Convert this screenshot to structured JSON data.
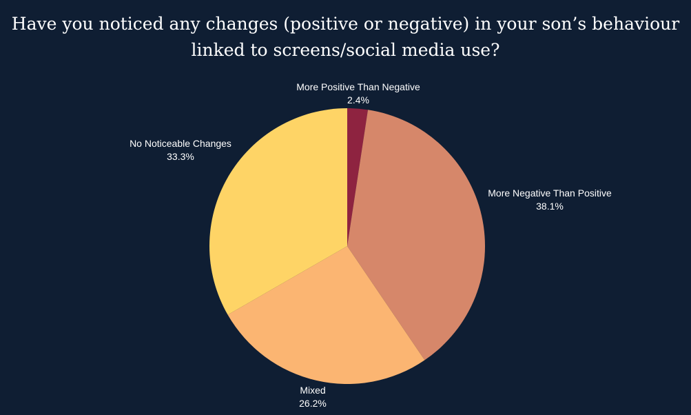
{
  "chart_data": {
    "type": "pie",
    "title": "Have you noticed any changes (positive or negative) in your son’s behaviour linked to screens/social media use?",
    "slices": [
      {
        "label": "More Positive Than Negative",
        "value": 2.4,
        "value_label": "2.4%",
        "color": "#8e2340"
      },
      {
        "label": "More Negative Than Positive",
        "value": 38.1,
        "value_label": "38.1%",
        "color": "#d6876a"
      },
      {
        "label": "Mixed",
        "value": 26.2,
        "value_label": "26.2%",
        "color": "#fbb572"
      },
      {
        "label": "No Noticeable Changes",
        "value": 33.3,
        "value_label": "33.3%",
        "color": "#fed466"
      }
    ],
    "start_angle_deg": 0,
    "direction": "clockwise",
    "legend": "none",
    "background": "#0f1e33",
    "text_color": "#ffffff"
  }
}
